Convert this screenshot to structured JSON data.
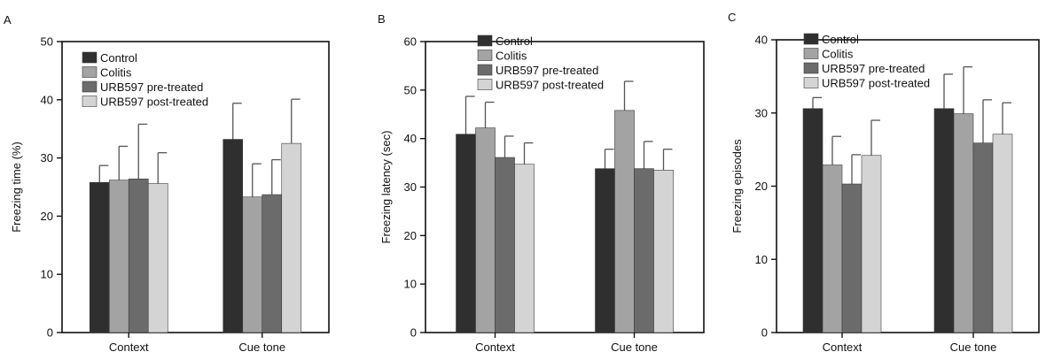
{
  "colors": {
    "Control": "#2f2f2f",
    "Colitis": "#a3a3a3",
    "URB597 pre-treated": "#6b6b6b",
    "URB597 post-treated": "#d4d4d4",
    "axis": "#111111",
    "errorbar": "#555555"
  },
  "chart_data": [
    {
      "panel_label": "A",
      "type": "bar",
      "ylabel": "Freezing time        (%)",
      "ylim": [
        0,
        50
      ],
      "yticks": [
        0,
        10,
        20,
        30,
        40,
        50
      ],
      "categories": [
        "Context",
        "Cue tone"
      ],
      "legend": "top-left",
      "grid": false,
      "series": [
        {
          "name": "Control",
          "values": [
            25.8,
            33.2
          ],
          "errors": [
            2.9,
            6.2
          ]
        },
        {
          "name": "Colitis",
          "values": [
            26.2,
            23.3
          ],
          "errors": [
            5.8,
            5.7
          ]
        },
        {
          "name": "URB597 pre-treated",
          "values": [
            26.4,
            23.7
          ],
          "errors": [
            9.4,
            6.0
          ]
        },
        {
          "name": "URB597 post-treated",
          "values": [
            25.6,
            32.5
          ],
          "errors": [
            5.3,
            7.6
          ]
        }
      ]
    },
    {
      "panel_label": "B",
      "type": "bar",
      "ylabel": "Freezing latency (sec)",
      "ylim": [
        0,
        60
      ],
      "yticks": [
        0,
        10,
        20,
        30,
        40,
        50,
        60
      ],
      "categories": [
        "Context",
        "Cue tone"
      ],
      "legend": "top-left",
      "grid": false,
      "series": [
        {
          "name": "Control",
          "values": [
            40.9,
            33.8
          ],
          "errors": [
            7.8,
            4.0
          ]
        },
        {
          "name": "Colitis",
          "values": [
            42.2,
            45.8
          ],
          "errors": [
            5.3,
            6.0
          ]
        },
        {
          "name": "URB597 pre-treated",
          "values": [
            36.1,
            33.8
          ],
          "errors": [
            4.4,
            5.6
          ]
        },
        {
          "name": "URB597 post-treated",
          "values": [
            34.7,
            33.5
          ],
          "errors": [
            4.4,
            4.3
          ]
        }
      ]
    },
    {
      "panel_label": "C",
      "type": "bar",
      "ylabel": "Freezing episodes",
      "ylim": [
        0,
        40
      ],
      "yticks": [
        0,
        10,
        20,
        30,
        40
      ],
      "categories": [
        "Context",
        "Cue tone"
      ],
      "legend": "top-left",
      "grid": false,
      "series": [
        {
          "name": "Control",
          "values": [
            30.6,
            30.6
          ],
          "errors": [
            1.5,
            4.7
          ]
        },
        {
          "name": "Colitis",
          "values": [
            22.9,
            29.9
          ],
          "errors": [
            3.9,
            6.4
          ]
        },
        {
          "name": "URB597 pre-treated",
          "values": [
            20.3,
            25.9
          ],
          "errors": [
            4.0,
            5.9
          ]
        },
        {
          "name": "URB597 post-treated",
          "values": [
            24.2,
            27.1
          ],
          "errors": [
            4.8,
            4.3
          ]
        }
      ]
    }
  ]
}
